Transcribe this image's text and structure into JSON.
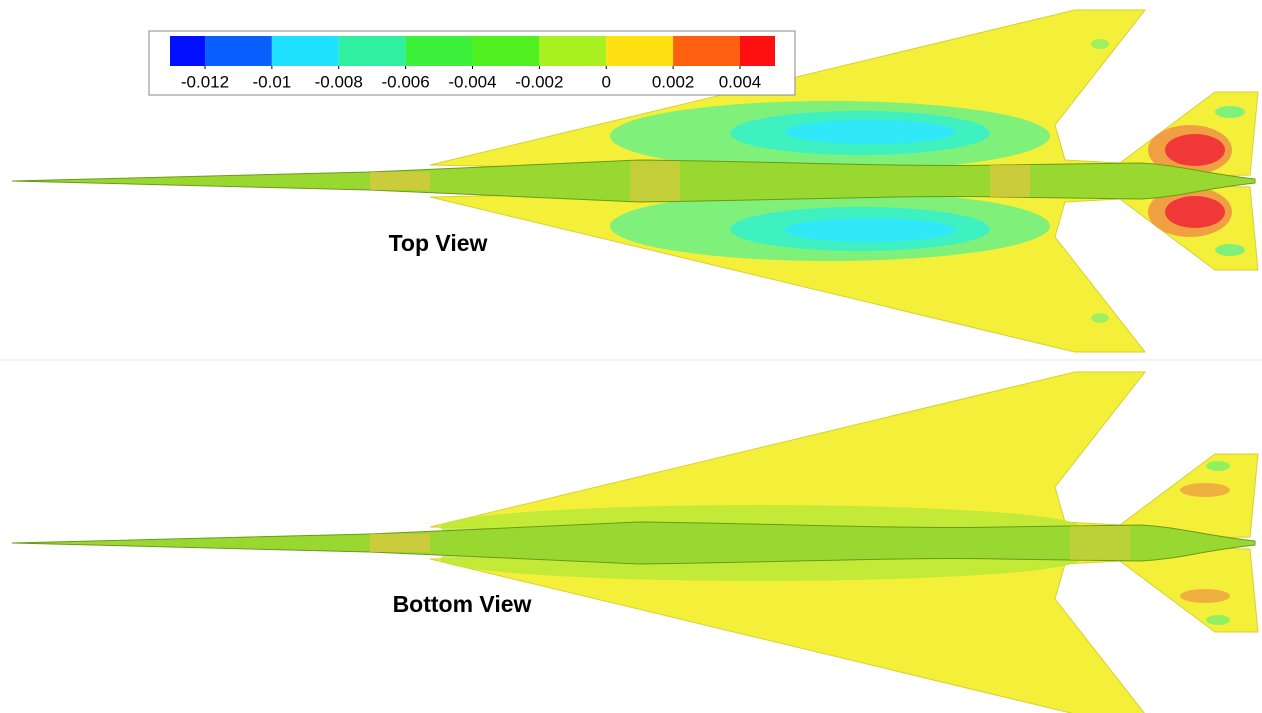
{
  "legend": {
    "ticks": [
      -0.012,
      -0.01,
      -0.008,
      -0.006,
      -0.004,
      -0.002,
      0,
      0.002,
      0.004
    ],
    "colors": [
      "#0010ff",
      "#0a60ff",
      "#1fe0ff",
      "#2ff0a0",
      "#3cf03c",
      "#50f020",
      "#a8f020",
      "#ffe010",
      "#ff6010",
      "#ff1010"
    ]
  },
  "views": [
    {
      "label": "Top View"
    },
    {
      "label": "Bottom View"
    }
  ]
}
